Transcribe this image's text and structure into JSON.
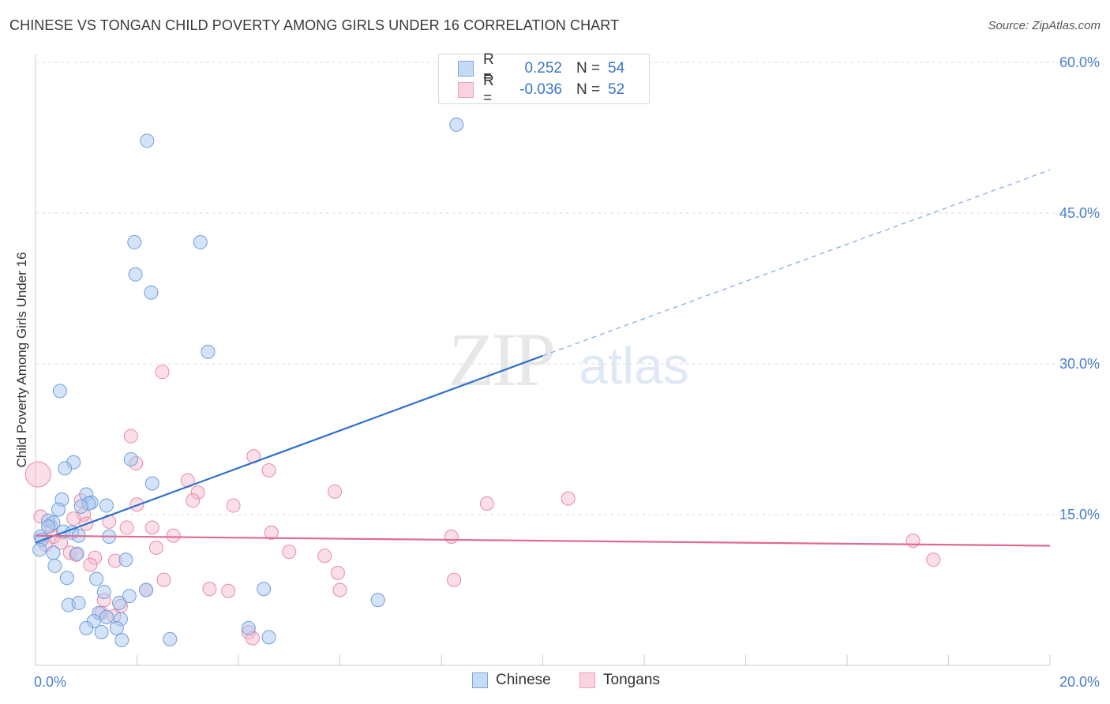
{
  "header": {
    "title": "CHINESE VS TONGAN CHILD POVERTY AMONG GIRLS UNDER 16 CORRELATION CHART",
    "source": "Source: ZipAtlas.com"
  },
  "watermark": {
    "zip": "ZIP",
    "atlas": "atlas"
  },
  "legend_top": {
    "rows": [
      {
        "r_label": "R =",
        "r_value": "0.252",
        "n_label": "N =",
        "n_value": "54",
        "color": "#a9c8f0"
      },
      {
        "r_label": "R =",
        "r_value": "-0.036",
        "n_label": "N =",
        "n_value": "52",
        "color": "#f6b9cc"
      }
    ]
  },
  "legend_bottom": {
    "items": [
      {
        "label": "Chinese",
        "color": "#a9c8f0"
      },
      {
        "label": "Tongans",
        "color": "#f6b9cc"
      }
    ]
  },
  "colors": {
    "chinese_fill": "#a9c8f0",
    "chinese_stroke": "#6f9fdc",
    "chinese_line": "#2f6fcc",
    "tongan_fill": "#f6b9cc",
    "tongan_stroke": "#e88aa8",
    "tongan_line": "#e06a94",
    "grid": "#dddddd",
    "tick_text": "#4a7fd0"
  },
  "chart_data": {
    "type": "scatter",
    "title": "CHINESE VS TONGAN CHILD POVERTY AMONG GIRLS UNDER 16 CORRELATION CHART",
    "xlabel": "",
    "ylabel": "Child Poverty Among Girls Under 16",
    "xlim": [
      0,
      20
    ],
    "ylim": [
      0,
      60
    ],
    "x_ticks": [
      0,
      20
    ],
    "x_tick_labels": [
      "0.0%",
      "20.0%"
    ],
    "y_ticks": [
      15,
      30,
      45,
      60
    ],
    "y_tick_labels": [
      "15.0%",
      "30.0%",
      "45.0%",
      "60.0%"
    ],
    "grid": true,
    "legend": "top-center",
    "series": [
      {
        "name": "Chinese",
        "r": 0.252,
        "n": 54,
        "trend": {
          "x0": 0,
          "y0": 12.2,
          "x1": 10,
          "y1": 30.8,
          "dashed_to_x": 20,
          "dashed_to_y": 49.3
        },
        "points": [
          [
            8.3,
            53.8
          ],
          [
            2.2,
            52.2
          ],
          [
            1.95,
            42.1
          ],
          [
            3.25,
            42.1
          ],
          [
            1.97,
            38.9
          ],
          [
            2.28,
            37.1
          ],
          [
            3.4,
            31.2
          ],
          [
            0.48,
            27.3
          ],
          [
            0.75,
            20.2
          ],
          [
            1.88,
            20.5
          ],
          [
            0.58,
            19.6
          ],
          [
            2.3,
            18.1
          ],
          [
            1.0,
            17.0
          ],
          [
            0.52,
            16.5
          ],
          [
            1.1,
            16.2
          ],
          [
            1.05,
            16.1
          ],
          [
            1.4,
            15.9
          ],
          [
            0.9,
            15.8
          ],
          [
            0.45,
            15.5
          ],
          [
            0.25,
            14.4
          ],
          [
            0.35,
            14.2
          ],
          [
            0.25,
            13.8
          ],
          [
            0.55,
            13.3
          ],
          [
            0.72,
            13.2
          ],
          [
            0.85,
            12.9
          ],
          [
            1.45,
            12.8
          ],
          [
            0.1,
            12.8
          ],
          [
            0.12,
            12.5
          ],
          [
            0.08,
            11.5
          ],
          [
            0.35,
            11.2
          ],
          [
            0.82,
            11.1
          ],
          [
            1.78,
            10.5
          ],
          [
            0.38,
            9.9
          ],
          [
            0.62,
            8.7
          ],
          [
            1.2,
            8.6
          ],
          [
            1.35,
            7.3
          ],
          [
            1.85,
            6.9
          ],
          [
            2.18,
            7.5
          ],
          [
            4.5,
            7.6
          ],
          [
            6.75,
            6.5
          ],
          [
            0.65,
            6.0
          ],
          [
            0.85,
            6.2
          ],
          [
            1.65,
            6.2
          ],
          [
            1.25,
            5.2
          ],
          [
            1.4,
            4.8
          ],
          [
            1.68,
            4.6
          ],
          [
            1.15,
            4.4
          ],
          [
            1.0,
            3.7
          ],
          [
            1.6,
            3.7
          ],
          [
            4.2,
            3.7
          ],
          [
            1.3,
            3.3
          ],
          [
            2.65,
            2.6
          ],
          [
            4.6,
            2.8
          ],
          [
            1.7,
            2.5
          ]
        ]
      },
      {
        "name": "Tongans",
        "r": -0.036,
        "n": 52,
        "trend": {
          "x0": 0,
          "y0": 12.9,
          "x1": 20,
          "y1": 11.9
        },
        "points": [
          [
            0.05,
            19.0
          ],
          [
            2.5,
            29.2
          ],
          [
            1.88,
            22.8
          ],
          [
            4.3,
            20.8
          ],
          [
            1.98,
            20.1
          ],
          [
            4.6,
            19.4
          ],
          [
            3.0,
            18.4
          ],
          [
            5.9,
            17.3
          ],
          [
            3.2,
            17.2
          ],
          [
            10.5,
            16.6
          ],
          [
            3.1,
            16.4
          ],
          [
            8.9,
            16.1
          ],
          [
            0.9,
            16.4
          ],
          [
            2.0,
            16.0
          ],
          [
            3.9,
            15.9
          ],
          [
            0.95,
            15.0
          ],
          [
            0.1,
            14.8
          ],
          [
            0.75,
            14.6
          ],
          [
            1.45,
            14.3
          ],
          [
            1.0,
            14.1
          ],
          [
            0.3,
            13.9
          ],
          [
            1.8,
            13.7
          ],
          [
            2.3,
            13.7
          ],
          [
            4.65,
            13.2
          ],
          [
            0.35,
            12.8
          ],
          [
            2.72,
            12.9
          ],
          [
            8.2,
            12.8
          ],
          [
            17.3,
            12.4
          ],
          [
            0.5,
            12.2
          ],
          [
            0.2,
            12.0
          ],
          [
            2.38,
            11.7
          ],
          [
            5.0,
            11.3
          ],
          [
            0.68,
            11.2
          ],
          [
            0.8,
            11.0
          ],
          [
            5.7,
            10.9
          ],
          [
            1.17,
            10.7
          ],
          [
            17.7,
            10.5
          ],
          [
            1.57,
            10.4
          ],
          [
            1.08,
            10.0
          ],
          [
            5.96,
            9.2
          ],
          [
            2.53,
            8.5
          ],
          [
            8.25,
            8.5
          ],
          [
            3.43,
            7.6
          ],
          [
            3.8,
            7.4
          ],
          [
            6.0,
            7.5
          ],
          [
            2.18,
            7.5
          ],
          [
            1.35,
            6.5
          ],
          [
            1.68,
            5.9
          ],
          [
            1.3,
            5.2
          ],
          [
            1.55,
            4.9
          ],
          [
            4.2,
            3.3
          ],
          [
            4.28,
            2.7
          ]
        ]
      }
    ]
  }
}
